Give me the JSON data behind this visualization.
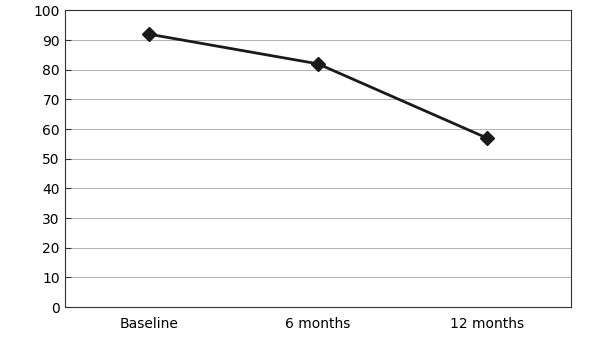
{
  "x_labels": [
    "Baseline",
    "6 months",
    "12 months"
  ],
  "x_values": [
    0,
    1,
    2
  ],
  "y_values": [
    92,
    82,
    57
  ],
  "ylim": [
    0,
    100
  ],
  "yticks": [
    0,
    10,
    20,
    30,
    40,
    50,
    60,
    70,
    80,
    90,
    100
  ],
  "line_color": "#1a1a1a",
  "marker": "D",
  "marker_size": 7,
  "marker_color": "#1a1a1a",
  "line_width": 2.0,
  "bg_color": "#ffffff",
  "grid_color": "#b0b0b0",
  "tick_fontsize": 10,
  "label_fontsize": 10,
  "spine_color": "#333333"
}
